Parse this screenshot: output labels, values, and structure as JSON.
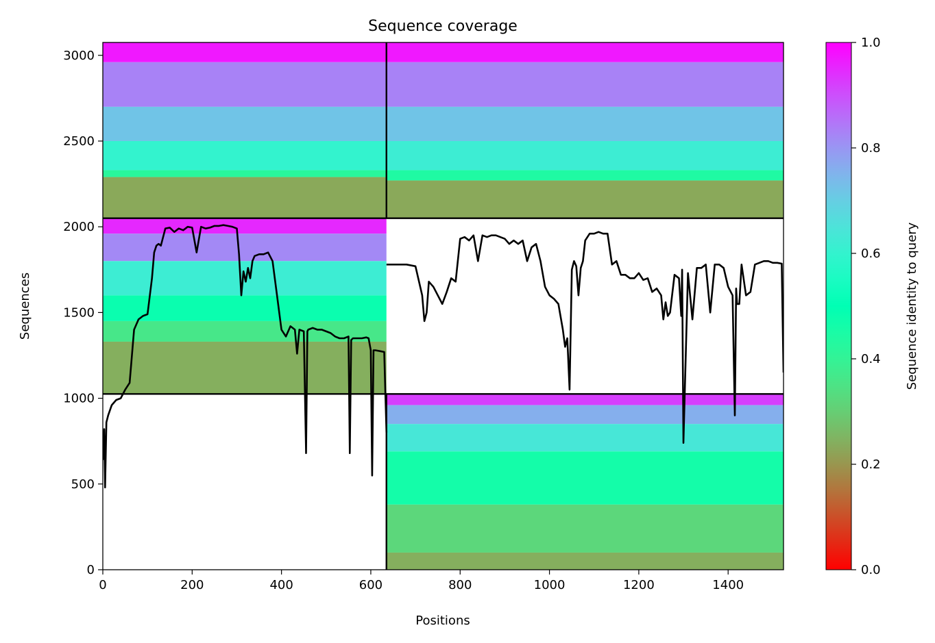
{
  "chart_data": {
    "type": "heatmap",
    "title": "Sequence coverage",
    "xlabel": "Positions",
    "ylabel": "Sequences",
    "xlim": [
      0,
      1524
    ],
    "ylim": [
      0,
      3075
    ],
    "xticks": [
      0,
      200,
      400,
      600,
      800,
      1000,
      1200,
      1400
    ],
    "yticks": [
      0,
      500,
      1000,
      1500,
      2000,
      2500,
      3000
    ],
    "grid": false,
    "colorbar": {
      "label": "Sequence identity to query",
      "colormap": "rainbow_r",
      "range": [
        0,
        1
      ],
      "ticks": [
        0.0,
        0.2,
        0.4,
        0.6,
        0.8,
        1.0
      ],
      "tick_labels": [
        "0.0",
        "0.2",
        "0.4",
        "0.6",
        "0.8",
        "1.0"
      ]
    },
    "blocks": [
      {
        "name": "top-left",
        "x": [
          0,
          635
        ],
        "y": [
          2050,
          3075
        ],
        "bands": [
          {
            "y0": 2960,
            "y1": 3075,
            "identity": 0.97
          },
          {
            "y0": 2700,
            "y1": 2960,
            "identity": 0.83
          },
          {
            "y0": 2500,
            "y1": 2700,
            "identity": 0.72
          },
          {
            "y0": 2330,
            "y1": 2500,
            "identity": 0.6
          },
          {
            "y0": 2290,
            "y1": 2330,
            "identity": 0.42
          },
          {
            "y0": 2050,
            "y1": 2290,
            "identity": 0.23
          }
        ]
      },
      {
        "name": "top-right",
        "x": [
          635,
          1524
        ],
        "y": [
          2050,
          3075
        ],
        "bands": [
          {
            "y0": 2960,
            "y1": 3075,
            "identity": 0.97
          },
          {
            "y0": 2700,
            "y1": 2960,
            "identity": 0.83
          },
          {
            "y0": 2500,
            "y1": 2700,
            "identity": 0.72
          },
          {
            "y0": 2330,
            "y1": 2500,
            "identity": 0.62
          },
          {
            "y0": 2270,
            "y1": 2330,
            "identity": 0.44
          },
          {
            "y0": 2050,
            "y1": 2270,
            "identity": 0.23
          }
        ]
      },
      {
        "name": "middle-left",
        "x": [
          0,
          635
        ],
        "y": [
          1025,
          2050
        ],
        "bands": [
          {
            "y0": 1960,
            "y1": 2050,
            "identity": 0.95
          },
          {
            "y0": 1800,
            "y1": 1960,
            "identity": 0.82
          },
          {
            "y0": 1600,
            "y1": 1800,
            "identity": 0.62
          },
          {
            "y0": 1450,
            "y1": 1600,
            "identity": 0.48
          },
          {
            "y0": 1330,
            "y1": 1450,
            "identity": 0.36
          },
          {
            "y0": 1025,
            "y1": 1330,
            "identity": 0.24
          }
        ]
      },
      {
        "name": "bottom-right",
        "x": [
          635,
          1524
        ],
        "y": [
          0,
          1025
        ],
        "bands": [
          {
            "y0": 960,
            "y1": 1025,
            "identity": 0.92
          },
          {
            "y0": 850,
            "y1": 960,
            "identity": 0.76
          },
          {
            "y0": 690,
            "y1": 850,
            "identity": 0.64
          },
          {
            "y0": 380,
            "y1": 690,
            "identity": 0.46
          },
          {
            "y0": 100,
            "y1": 380,
            "identity": 0.32
          },
          {
            "y0": 0,
            "y1": 100,
            "identity": 0.24
          }
        ]
      }
    ],
    "separators": {
      "horizontal": [
        1025,
        2050
      ],
      "vertical": [
        {
          "x": 635,
          "y0": 2050,
          "y1": 3075
        },
        {
          "x": 635,
          "y0": 0,
          "y1": 1025
        }
      ]
    },
    "coverage_line_left": {
      "x": [
        0,
        3,
        5,
        8,
        12,
        20,
        30,
        40,
        50,
        60,
        70,
        80,
        90,
        100,
        110,
        115,
        120,
        125,
        130,
        140,
        150,
        160,
        170,
        180,
        190,
        200,
        210,
        220,
        230,
        240,
        250,
        260,
        270,
        280,
        290,
        300,
        305,
        310,
        315,
        320,
        325,
        330,
        335,
        340,
        350,
        360,
        370,
        380,
        390,
        400,
        410,
        420,
        430,
        435,
        440,
        450,
        455,
        458,
        460,
        470,
        480,
        490,
        500,
        510,
        520,
        530,
        540,
        550,
        553,
        556,
        560,
        570,
        580,
        590,
        595,
        600,
        603,
        606,
        610,
        620,
        630,
        635
      ],
      "y": [
        640,
        820,
        480,
        860,
        900,
        960,
        990,
        1000,
        1050,
        1090,
        1400,
        1460,
        1480,
        1490,
        1700,
        1850,
        1890,
        1900,
        1890,
        1990,
        1995,
        1970,
        1990,
        1980,
        2000,
        1995,
        1850,
        2000,
        1990,
        1995,
        2005,
        2005,
        2010,
        2005,
        2000,
        1990,
        1840,
        1600,
        1740,
        1680,
        1760,
        1700,
        1800,
        1830,
        1840,
        1840,
        1850,
        1800,
        1600,
        1400,
        1360,
        1420,
        1400,
        1260,
        1400,
        1390,
        680,
        1390,
        1400,
        1410,
        1400,
        1400,
        1390,
        1380,
        1360,
        1350,
        1350,
        1360,
        680,
        1340,
        1350,
        1350,
        1350,
        1355,
        1350,
        1280,
        550,
        1280,
        1280,
        1275,
        1270,
        800
      ]
    },
    "coverage_line_right": {
      "x": [
        635,
        680,
        700,
        715,
        720,
        725,
        730,
        740,
        750,
        760,
        770,
        780,
        790,
        800,
        810,
        820,
        830,
        840,
        850,
        860,
        870,
        880,
        890,
        900,
        910,
        920,
        930,
        940,
        950,
        960,
        970,
        980,
        990,
        1000,
        1010,
        1020,
        1030,
        1035,
        1040,
        1045,
        1050,
        1055,
        1060,
        1065,
        1070,
        1075,
        1080,
        1090,
        1100,
        1110,
        1120,
        1130,
        1140,
        1150,
        1160,
        1170,
        1180,
        1190,
        1200,
        1210,
        1220,
        1230,
        1240,
        1250,
        1255,
        1260,
        1265,
        1270,
        1280,
        1290,
        1295,
        1297,
        1300,
        1310,
        1320,
        1330,
        1340,
        1350,
        1360,
        1370,
        1380,
        1390,
        1400,
        1410,
        1415,
        1418,
        1420,
        1425,
        1430,
        1440,
        1450,
        1460,
        1470,
        1480,
        1490,
        1500,
        1510,
        1520,
        1524
      ],
      "y": [
        1780,
        1780,
        1770,
        1600,
        1450,
        1500,
        1680,
        1650,
        1600,
        1550,
        1620,
        1700,
        1680,
        1930,
        1940,
        1920,
        1950,
        1800,
        1950,
        1940,
        1950,
        1950,
        1940,
        1930,
        1900,
        1920,
        1900,
        1920,
        1800,
        1880,
        1900,
        1800,
        1650,
        1600,
        1580,
        1550,
        1400,
        1300,
        1350,
        1050,
        1750,
        1800,
        1770,
        1600,
        1760,
        1800,
        1920,
        1960,
        1960,
        1970,
        1960,
        1960,
        1780,
        1800,
        1720,
        1720,
        1700,
        1700,
        1730,
        1690,
        1700,
        1620,
        1640,
        1600,
        1460,
        1560,
        1480,
        1500,
        1720,
        1700,
        1480,
        1750,
        740,
        1730,
        1460,
        1760,
        1760,
        1780,
        1500,
        1780,
        1780,
        1760,
        1650,
        1600,
        900,
        1640,
        1550,
        1550,
        1780,
        1600,
        1620,
        1780,
        1790,
        1800,
        1800,
        1790,
        1790,
        1785,
        1150
      ]
    }
  }
}
